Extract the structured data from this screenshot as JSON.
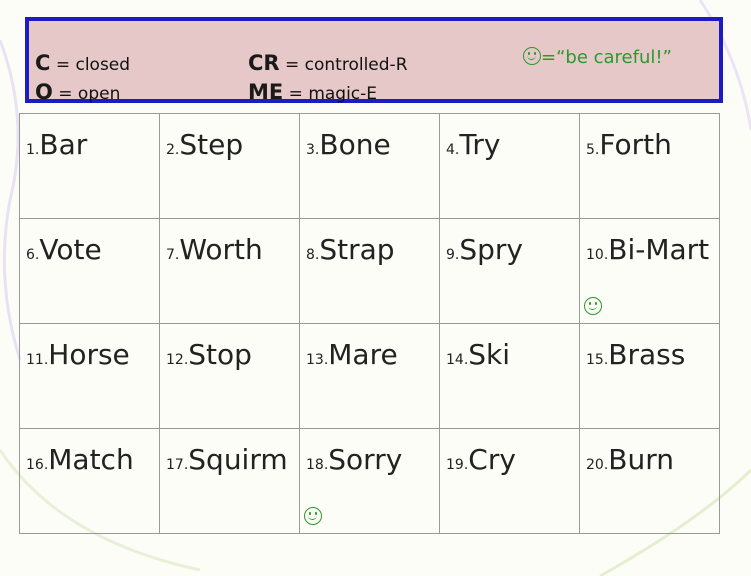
{
  "legend": {
    "c_key": "C",
    "c_sep": "=",
    "c_val": "closed",
    "o_key": "O",
    "o_sep": "=",
    "o_val": "open",
    "cr_key": "CR",
    "cr_sep": "=",
    "cr_val": "controlled-R",
    "me_key": "ME",
    "me_sep": "=",
    "me_val": "magic-E",
    "smiley_text": "=“be careful!”",
    "smiley_icon": "smiley-face-icon"
  },
  "words": [
    [
      {
        "n": "1.",
        "w": "Bar"
      },
      {
        "n": "2.",
        "w": "Step"
      },
      {
        "n": "3.",
        "w": "Bone"
      },
      {
        "n": "4.",
        "w": "Try"
      },
      {
        "n": "5.",
        "w": "Forth"
      }
    ],
    [
      {
        "n": "6.",
        "w": "Vote"
      },
      {
        "n": "7.",
        "w": "Worth"
      },
      {
        "n": "8.",
        "w": "Strap"
      },
      {
        "n": "9.",
        "w": "Spry"
      },
      {
        "n": "10.",
        "w": "Bi-Mart",
        "smiley": true
      }
    ],
    [
      {
        "n": "11.",
        "w": "Horse"
      },
      {
        "n": "12.",
        "w": "Stop"
      },
      {
        "n": "13.",
        "w": "Mare"
      },
      {
        "n": "14.",
        "w": "Ski"
      },
      {
        "n": "15.",
        "w": "Brass"
      }
    ],
    [
      {
        "n": "16.",
        "w": "Match"
      },
      {
        "n": "17.",
        "w": "Squirm"
      },
      {
        "n": "18.",
        "w": "Sorry",
        "smiley": true
      },
      {
        "n": "19.",
        "w": "Cry"
      },
      {
        "n": "20.",
        "w": "Burn"
      }
    ]
  ],
  "colors": {
    "legend_bg": "#e6c8c8",
    "legend_border": "#1c1cc0",
    "smiley": "#2b9a2b",
    "grid": "#999999"
  }
}
